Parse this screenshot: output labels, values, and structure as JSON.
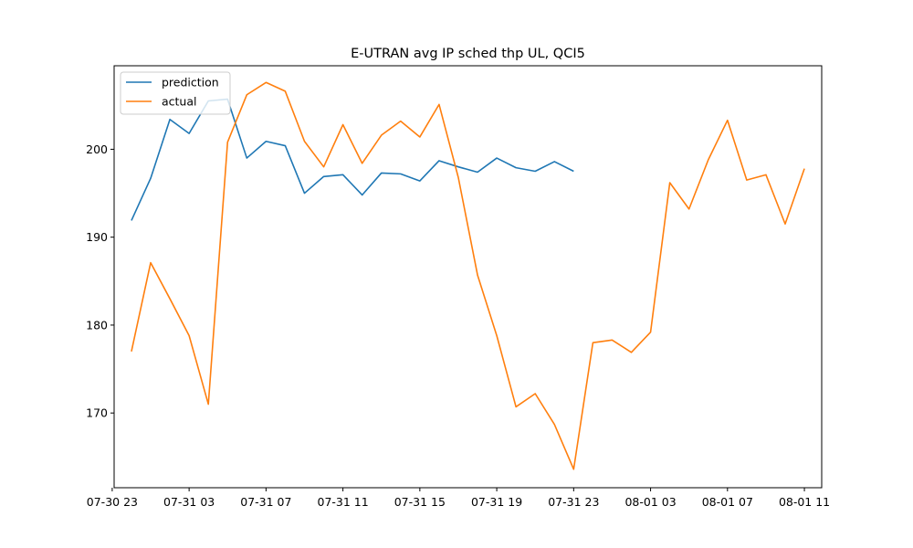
{
  "chart_data": {
    "type": "line",
    "title": "E-UTRAN avg IP sched thp UL, QCI5",
    "xlabel": "",
    "ylabel": "",
    "x_start": "07-31 00",
    "x_step_hours": 1,
    "xlim_hours": [
      -0.9,
      35.9
    ],
    "ylim": [
      161.5,
      209.5
    ],
    "yticks": [
      170,
      180,
      190,
      200
    ],
    "xticks": [
      {
        "hour": -1,
        "label": "07-30 23"
      },
      {
        "hour": 3,
        "label": "07-31 03"
      },
      {
        "hour": 7,
        "label": "07-31 07"
      },
      {
        "hour": 11,
        "label": "07-31 11"
      },
      {
        "hour": 15,
        "label": "07-31 15"
      },
      {
        "hour": 19,
        "label": "07-31 19"
      },
      {
        "hour": 23,
        "label": "07-31 23"
      },
      {
        "hour": 27,
        "label": "08-01 03"
      },
      {
        "hour": 31,
        "label": "08-01 07"
      },
      {
        "hour": 35,
        "label": "08-01 11"
      }
    ],
    "grid": false,
    "legend_position": "upper-left",
    "series": [
      {
        "name": "prediction",
        "color": "#1f77b4",
        "values": [
          191.9,
          196.7,
          203.4,
          201.8,
          205.5,
          205.7,
          199.0,
          200.9,
          200.4,
          195.0,
          196.9,
          197.1,
          194.8,
          197.3,
          197.2,
          196.4,
          198.7,
          198.0,
          197.4,
          199.0,
          197.9,
          197.5,
          198.6,
          197.5
        ]
      },
      {
        "name": "actual",
        "color": "#ff7f0e",
        "values": [
          177.0,
          187.1,
          183.0,
          178.8,
          171.0,
          200.8,
          206.2,
          207.6,
          206.6,
          200.9,
          198.0,
          202.8,
          198.4,
          201.6,
          203.2,
          201.4,
          205.1,
          196.8,
          185.7,
          178.8,
          170.7,
          172.2,
          168.7,
          163.6,
          178.0,
          178.3,
          176.9,
          179.2,
          196.2,
          193.2,
          198.8,
          203.3,
          196.5,
          197.1,
          191.5,
          197.8
        ]
      }
    ]
  }
}
